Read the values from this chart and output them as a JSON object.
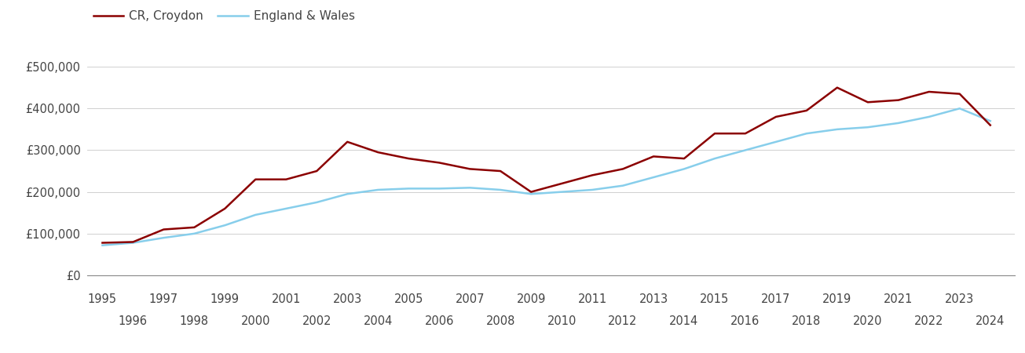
{
  "croydon_years": [
    1995,
    1996,
    1997,
    1998,
    1999,
    2000,
    2001,
    2002,
    2003,
    2004,
    2005,
    2006,
    2007,
    2008,
    2009,
    2010,
    2011,
    2012,
    2013,
    2014,
    2015,
    2016,
    2017,
    2018,
    2019,
    2020,
    2021,
    2022,
    2023,
    2024
  ],
  "croydon_values": [
    78000,
    80000,
    110000,
    115000,
    160000,
    230000,
    230000,
    250000,
    320000,
    295000,
    280000,
    270000,
    255000,
    250000,
    200000,
    220000,
    240000,
    255000,
    285000,
    280000,
    340000,
    340000,
    380000,
    395000,
    450000,
    415000,
    420000,
    440000,
    435000,
    360000
  ],
  "ew_years": [
    1995,
    1996,
    1997,
    1998,
    1999,
    2000,
    2001,
    2002,
    2003,
    2004,
    2005,
    2006,
    2007,
    2008,
    2009,
    2010,
    2011,
    2012,
    2013,
    2014,
    2015,
    2016,
    2017,
    2018,
    2019,
    2020,
    2021,
    2022,
    2023,
    2024
  ],
  "ew_values": [
    72000,
    78000,
    90000,
    100000,
    120000,
    145000,
    160000,
    175000,
    195000,
    205000,
    208000,
    208000,
    210000,
    205000,
    195000,
    200000,
    205000,
    215000,
    235000,
    255000,
    280000,
    300000,
    320000,
    340000,
    350000,
    355000,
    365000,
    380000,
    400000,
    370000
  ],
  "croydon_color": "#8B0000",
  "ew_color": "#87CEEB",
  "croydon_label": "CR, Croydon",
  "ew_label": "England & Wales",
  "ylim": [
    0,
    550000
  ],
  "yticks": [
    0,
    100000,
    200000,
    300000,
    400000,
    500000
  ],
  "ytick_labels": [
    "£0",
    "£100,000",
    "£200,000",
    "£300,000",
    "£400,000",
    "£500,000"
  ],
  "xticks_odd": [
    1995,
    1997,
    1999,
    2001,
    2003,
    2005,
    2007,
    2009,
    2011,
    2013,
    2015,
    2017,
    2019,
    2021,
    2023
  ],
  "xticks_even": [
    1996,
    1998,
    2000,
    2002,
    2004,
    2006,
    2008,
    2010,
    2012,
    2014,
    2016,
    2018,
    2020,
    2022,
    2024
  ],
  "xlim": [
    1994.5,
    2024.8
  ],
  "background_color": "#ffffff",
  "grid_color": "#d0d0d0",
  "line_width": 1.8,
  "tick_fontsize": 10.5,
  "legend_fontsize": 11
}
